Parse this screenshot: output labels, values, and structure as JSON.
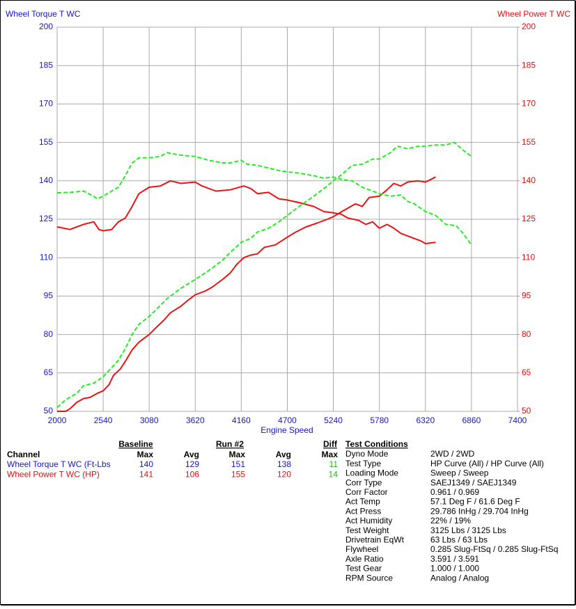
{
  "chart_data": {
    "type": "line",
    "y_label": "Wheel Torque T WC",
    "y2_label": "Wheel Power T WC",
    "x_label": "Engine Speed",
    "xlim": [
      2000,
      7400
    ],
    "xticks": [
      2000,
      2540,
      3080,
      3620,
      4160,
      4700,
      5240,
      5780,
      6320,
      6860,
      7400
    ],
    "ylim": [
      50,
      200
    ],
    "yticks": [
      50,
      65,
      80,
      95,
      110,
      125,
      140,
      155,
      170,
      185,
      200
    ],
    "y2lim": [
      50,
      200
    ],
    "y2ticks": [
      50,
      65,
      80,
      95,
      110,
      125,
      140,
      155,
      170,
      185,
      200
    ],
    "grid": true,
    "series": [
      {
        "color": "#ee1111",
        "dashed": false,
        "x": [
          2000,
          2150,
          2310,
          2430,
          2490,
          2540,
          2640,
          2720,
          2800,
          2880,
          2960,
          3080,
          3210,
          3330,
          3450,
          3620,
          3700,
          3860,
          4030,
          4190,
          4270,
          4350,
          4480,
          4600,
          4700,
          4840,
          5010,
          5130,
          5240,
          5330,
          5410,
          5540,
          5620,
          5700,
          5780,
          5870,
          5950,
          6030,
          6150,
          6270,
          6320,
          6440
        ],
        "values": [
          122,
          121,
          123,
          124,
          121,
          120.5,
          121,
          124,
          125.5,
          130,
          135,
          137.5,
          138,
          140,
          139,
          139.5,
          138,
          136,
          136.5,
          138,
          137,
          135,
          135.5,
          133,
          132.5,
          131.5,
          130,
          128,
          127.5,
          127,
          125.5,
          124.5,
          123,
          124,
          121.5,
          123,
          121.5,
          119.5,
          118,
          116.5,
          115.5,
          116
        ]
      },
      {
        "color": "#ee1111",
        "dashed": false,
        "axis": "y2",
        "x": [
          2000,
          2100,
          2150,
          2230,
          2310,
          2390,
          2470,
          2540,
          2610,
          2660,
          2740,
          2800,
          2880,
          2960,
          3080,
          3170,
          3250,
          3330,
          3450,
          3540,
          3620,
          3740,
          3820,
          3940,
          4030,
          4110,
          4190,
          4270,
          4350,
          4430,
          4560,
          4700,
          4800,
          4920,
          5050,
          5170,
          5240,
          5340,
          5420,
          5500,
          5580,
          5660,
          5780,
          5870,
          5950,
          6030,
          6110,
          6230,
          6320,
          6440
        ],
        "values": [
          50,
          50,
          51,
          53.5,
          55,
          55.5,
          57,
          58,
          60.5,
          64,
          66.5,
          69.5,
          74,
          77,
          80,
          83,
          85.5,
          88.5,
          91,
          93.5,
          95.5,
          97,
          98.5,
          101.5,
          104,
          107.5,
          110,
          111,
          111.5,
          114,
          115,
          118,
          120,
          122,
          123.5,
          125,
          126,
          128,
          129.5,
          131,
          130,
          133.5,
          134,
          136.5,
          139,
          138,
          139.5,
          140,
          139.5,
          141.5
        ]
      },
      {
        "color": "#22ee22",
        "dashed": true,
        "x": [
          2000,
          2150,
          2310,
          2430,
          2470,
          2540,
          2640,
          2720,
          2800,
          2880,
          2960,
          3080,
          3210,
          3290,
          3450,
          3620,
          3780,
          3940,
          4030,
          4160,
          4230,
          4350,
          4480,
          4600,
          4700,
          4840,
          5010,
          5130,
          5240,
          5340,
          5460,
          5580,
          5700,
          5780,
          5910,
          6030,
          6110,
          6190,
          6320,
          6440,
          6560,
          6680,
          6760,
          6860
        ],
        "values": [
          135.3,
          135.5,
          136,
          134,
          133,
          134,
          136,
          137.5,
          142,
          147,
          149,
          149,
          149.5,
          151,
          150,
          149.5,
          148,
          147,
          147,
          148,
          146.5,
          146,
          145,
          144,
          143.5,
          143,
          142,
          141,
          141.5,
          140.5,
          140,
          137.5,
          136,
          135,
          134,
          134.5,
          132,
          131,
          128,
          126.5,
          123,
          122.5,
          119.5,
          115
        ]
      },
      {
        "color": "#22ee22",
        "dashed": true,
        "axis": "y2",
        "x": [
          2000,
          2100,
          2230,
          2310,
          2430,
          2540,
          2640,
          2720,
          2800,
          2880,
          2960,
          3080,
          3170,
          3290,
          3450,
          3620,
          3780,
          3940,
          4030,
          4160,
          4270,
          4350,
          4480,
          4600,
          4700,
          4840,
          5010,
          5130,
          5240,
          5340,
          5460,
          5580,
          5700,
          5780,
          5910,
          5990,
          6110,
          6230,
          6320,
          6440,
          6560,
          6660,
          6760,
          6860
        ],
        "values": [
          51.5,
          54.5,
          57,
          60,
          61,
          63.5,
          67,
          70,
          74.5,
          80,
          84,
          87,
          90,
          94,
          98,
          101.5,
          105,
          109,
          112,
          116,
          117.5,
          120,
          121.5,
          124,
          126.5,
          130,
          134,
          137,
          140,
          142.5,
          146,
          146.5,
          148.5,
          148.5,
          151,
          153.5,
          152.5,
          153.5,
          153.5,
          154,
          154,
          155,
          152,
          149.5
        ]
      }
    ]
  },
  "table": {
    "group_headers": [
      "Baseline",
      "Run #2",
      "Diff"
    ],
    "headers": [
      "Channel",
      "Max",
      "Avg",
      "Max",
      "Avg",
      "Max"
    ],
    "rows": [
      [
        "Wheel Torque T WC (Ft-Lbs",
        140,
        129,
        151,
        138,
        11
      ],
      [
        "Wheel Power T WC (HP)",
        141,
        106,
        155,
        120,
        14
      ]
    ]
  },
  "test_conditions": {
    "title": "Test Conditions",
    "rows": [
      [
        "Dyno Mode",
        "2WD / 2WD"
      ],
      [
        "Test Type",
        "HP Curve (All) / HP Curve (All)"
      ],
      [
        "Loading Mode",
        "Sweep / Sweep"
      ],
      [
        "Corr Type",
        "SAEJ1349 / SAEJ1349"
      ],
      [
        "Corr Factor",
        "0.961 / 0.969"
      ],
      [
        "Act Temp",
        "57.1 Deg F / 61.6 Deg F"
      ],
      [
        "Act Press",
        "29.786 InHg / 29.704 InHg"
      ],
      [
        "Act Humidity",
        "22% / 19%"
      ],
      [
        "Test Weight",
        "3125 Lbs / 3125 Lbs"
      ],
      [
        "Drivetrain EqWt",
        "63 Lbs / 63 Lbs"
      ],
      [
        "Flywheel",
        "0.285 Slug-FtSq / 0.285 Slug-FtSq"
      ],
      [
        "Axle Ratio",
        "3.591 / 3.591"
      ],
      [
        "Test Gear",
        "1.000 / 1.000"
      ],
      [
        "RPM Source",
        "Analog / Analog"
      ]
    ]
  }
}
